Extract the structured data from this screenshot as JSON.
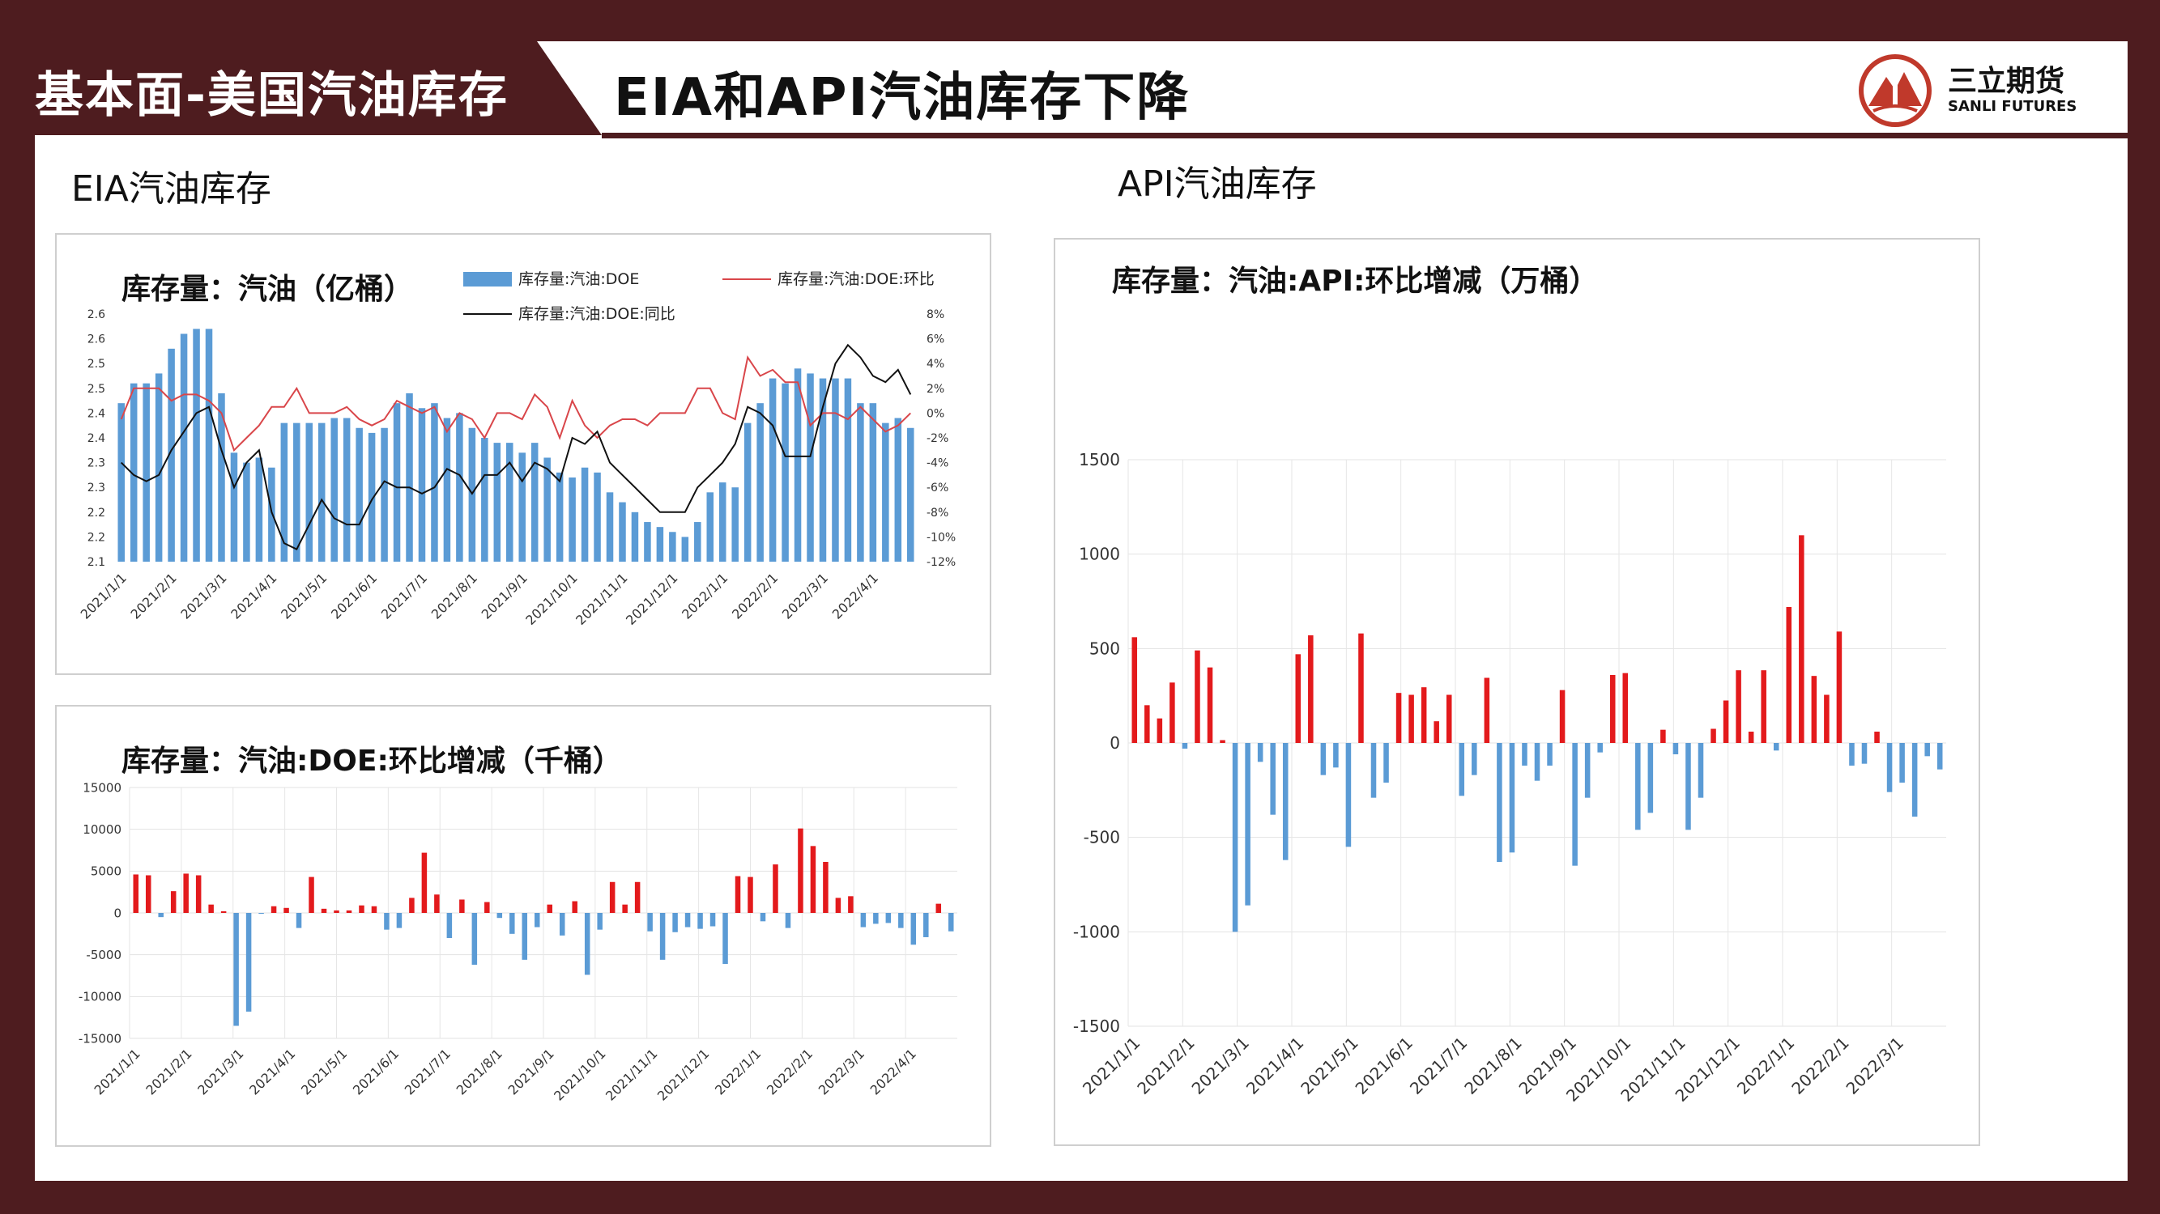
{
  "header": {
    "left_title": "基本面-美国汽油库存",
    "main_title": "EIA和API汽油库存下降",
    "logo_cn": "三立期货",
    "logo_en": "SANLI FUTURES"
  },
  "sections": {
    "eia": "EIA汽油库存",
    "api": "API汽油库存"
  },
  "colors": {
    "brand": "#4e1c1f",
    "bar_blue": "#5b9bd5",
    "bar_red": "#e31a1c",
    "line_red": "#d9464a",
    "line_black": "#111111"
  },
  "chart_data": [
    {
      "id": "eia_level",
      "type": "bar",
      "title": "库存量：汽油（亿桶）",
      "legend": {
        "bar": "库存量:汽油:DOE",
        "line_red": "库存量:汽油:DOE:环比",
        "line_black": "库存量:汽油:DOE:同比"
      },
      "ylim": [
        2.1,
        2.6
      ],
      "yticks": [
        "2.6",
        "2.6",
        "2.5",
        "2.5",
        "2.4",
        "2.4",
        "2.3",
        "2.3",
        "2.2",
        "2.2",
        "2.1"
      ],
      "y2lim": [
        -12,
        8
      ],
      "y2ticks": [
        "8%",
        "6%",
        "4%",
        "2%",
        "0%",
        "-2%",
        "-4%",
        "-6%",
        "-8%",
        "-10%",
        "-12%"
      ],
      "xticks": [
        "2021/1/1",
        "2021/2/1",
        "2021/3/1",
        "2021/4/1",
        "2021/5/1",
        "2021/6/1",
        "2021/7/1",
        "2021/8/1",
        "2021/9/1",
        "2021/10/1",
        "2021/11/1",
        "2021/12/1",
        "2022/1/1",
        "2022/2/1",
        "2022/3/1",
        "2022/4/1"
      ],
      "bars": [
        2.42,
        2.46,
        2.46,
        2.48,
        2.53,
        2.56,
        2.57,
        2.57,
        2.44,
        2.32,
        2.3,
        2.31,
        2.29,
        2.38,
        2.38,
        2.38,
        2.38,
        2.39,
        2.39,
        2.37,
        2.36,
        2.37,
        2.42,
        2.44,
        2.41,
        2.42,
        2.39,
        2.4,
        2.37,
        2.35,
        2.34,
        2.34,
        2.32,
        2.34,
        2.31,
        2.28,
        2.27,
        2.29,
        2.28,
        2.24,
        2.22,
        2.2,
        2.18,
        2.17,
        2.16,
        2.15,
        2.18,
        2.24,
        2.26,
        2.25,
        2.38,
        2.42,
        2.47,
        2.46,
        2.49,
        2.48,
        2.47,
        2.47,
        2.47,
        2.42,
        2.42,
        2.38,
        2.39,
        2.37
      ],
      "yoy": [
        -4.0,
        -5.0,
        -5.5,
        -5.0,
        -3.0,
        -1.5,
        0,
        0.5,
        -3.0,
        -6.0,
        -4.0,
        -3.0,
        -8.0,
        -10.5,
        -11.0,
        -9.0,
        -7.0,
        -8.5,
        -9.0,
        -9.0,
        -7.0,
        -5.5,
        -6.0,
        -6.0,
        -6.5,
        -6.0,
        -4.5,
        -5.0,
        -6.5,
        -5.0,
        -5.0,
        -4.0,
        -5.5,
        -4.0,
        -4.5,
        -5.5,
        -2.0,
        -2.5,
        -1.5,
        -4.0,
        -5.0,
        -6.0,
        -7.0,
        -8.0,
        -8.0,
        -8.0,
        -6.0,
        -5.0,
        -4.0,
        -2.5,
        0.5,
        0,
        -1.0,
        -3.5,
        -3.5,
        -3.5,
        0.5,
        4.0,
        5.5,
        4.5,
        3.0,
        2.5,
        3.5,
        1.5
      ],
      "mom": [
        -0.5,
        2,
        2,
        2,
        1,
        1.5,
        1.5,
        1,
        0,
        -3,
        -2,
        -1,
        0.5,
        0.5,
        2,
        0,
        0,
        0,
        0.5,
        -0.5,
        -1,
        -0.5,
        1,
        0.5,
        0,
        0.5,
        -1.5,
        0,
        -0.5,
        -2,
        0,
        0,
        -0.5,
        1.5,
        0.5,
        -2,
        1,
        -1,
        -2,
        -1,
        -0.5,
        -0.5,
        -1,
        0,
        0,
        0,
        2,
        2,
        0,
        -0.5,
        4.5,
        3,
        3.5,
        2.5,
        2.5,
        -1,
        0,
        0,
        -0.5,
        0.5,
        -0.5,
        -1.5,
        -1,
        0
      ]
    },
    {
      "id": "eia_change",
      "type": "bar",
      "title": "库存量：汽油:DOE:环比增减（千桶）",
      "ylim": [
        -15000,
        15000
      ],
      "yticks": [
        "15000",
        "10000",
        "5000",
        "0",
        "-5000",
        "-10000",
        "-15000"
      ],
      "xticks": [
        "2021/1/1",
        "2021/2/1",
        "2021/3/1",
        "2021/4/1",
        "2021/5/1",
        "2021/6/1",
        "2021/7/1",
        "2021/8/1",
        "2021/9/1",
        "2021/10/1",
        "2021/11/1",
        "2021/12/1",
        "2022/1/1",
        "2022/2/1",
        "2022/3/1",
        "2022/4/1"
      ],
      "values": [
        4600,
        4500,
        -500,
        2600,
        4700,
        4500,
        1000,
        200,
        -13500,
        -11800,
        -100,
        800,
        600,
        -1800,
        4300,
        500,
        300,
        300,
        900,
        800,
        -2000,
        -1800,
        1800,
        7200,
        2200,
        -3000,
        1600,
        -6200,
        1300,
        -600,
        -2500,
        -5600,
        -1700,
        1000,
        -2700,
        1400,
        -7400,
        -2000,
        3700,
        1000,
        3700,
        -2200,
        -5600,
        -2300,
        -1700,
        -1900,
        -1600,
        -6100,
        4400,
        4300,
        -1000,
        5800,
        -1800,
        10100,
        8000,
        6100,
        1800,
        2000,
        -1700,
        -1300,
        -1200,
        -1800,
        -3800,
        -2900,
        1100,
        -2200
      ]
    },
    {
      "id": "api_change",
      "type": "bar",
      "title": "库存量：汽油:API:环比增减（万桶）",
      "ylim": [
        -1500,
        1500
      ],
      "yticks": [
        "1500",
        "1000",
        "500",
        "0",
        "-500",
        "-1000",
        "-1500"
      ],
      "xticks": [
        "2021/1/1",
        "2021/2/1",
        "2021/3/1",
        "2021/4/1",
        "2021/5/1",
        "2021/6/1",
        "2021/7/1",
        "2021/8/1",
        "2021/9/1",
        "2021/10/1",
        "2021/11/1",
        "2021/12/1",
        "2022/1/1",
        "2022/2/1",
        "2022/3/1"
      ],
      "values": [
        560,
        200,
        130,
        320,
        -30,
        490,
        400,
        15,
        -1000,
        -860,
        -100,
        -380,
        -620,
        470,
        570,
        -170,
        -130,
        -550,
        580,
        -290,
        -210,
        265,
        255,
        295,
        115,
        255,
        -280,
        -170,
        345,
        -630,
        -580,
        -120,
        -200,
        -120,
        280,
        -650,
        -290,
        -50,
        360,
        370,
        -460,
        -370,
        70,
        -60,
        -460,
        -290,
        75,
        225,
        385,
        60,
        385,
        -40,
        720,
        1100,
        355,
        255,
        590,
        -120,
        -110,
        60,
        -260,
        -210,
        -390,
        -70,
        -140
      ]
    }
  ]
}
